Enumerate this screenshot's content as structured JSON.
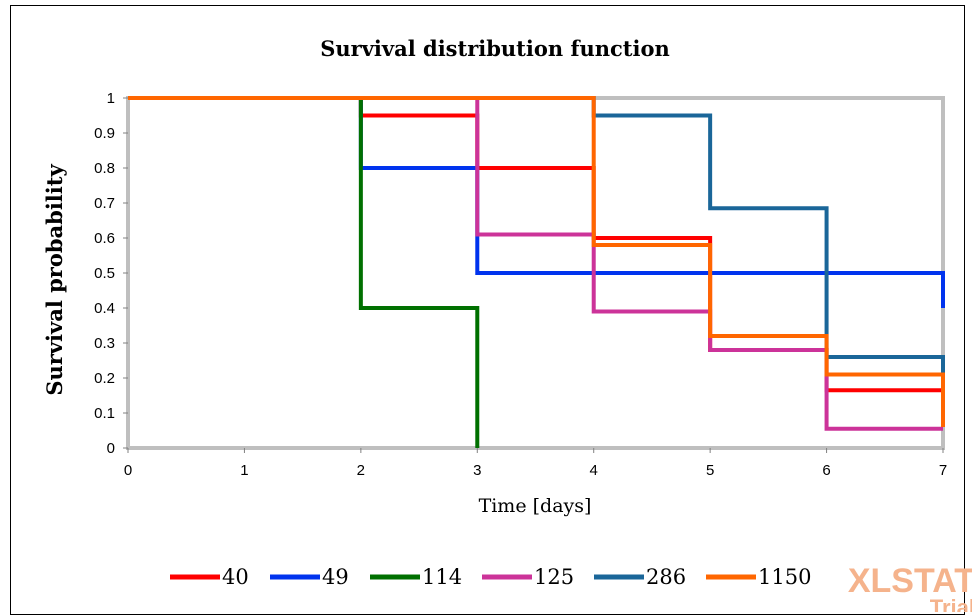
{
  "chart_data": {
    "type": "line",
    "step": true,
    "title": "Survival distribution function",
    "xlabel": "Time [days]",
    "ylabel": "Survival probability",
    "xlim": [
      0,
      7
    ],
    "ylim": [
      0,
      1
    ],
    "xticks": [
      "0",
      "1",
      "2",
      "3",
      "4",
      "5",
      "6",
      "7"
    ],
    "yticks": [
      "0",
      "0.1",
      "0.2",
      "0.3",
      "0.4",
      "0.5",
      "0.6",
      "0.7",
      "0.8",
      "0.9",
      "1"
    ],
    "grid": false,
    "legend_position": "bottom",
    "series": [
      {
        "name": "40",
        "color": "#ff0000",
        "x": [
          0,
          2,
          3,
          4,
          5,
          6,
          7
        ],
        "y": [
          1,
          0.95,
          0.8,
          0.6,
          0.28,
          0.165,
          0.165
        ]
      },
      {
        "name": "49",
        "color": "#0033ee",
        "x": [
          0,
          2,
          3,
          7
        ],
        "y": [
          1,
          0.8,
          0.5,
          0.4
        ]
      },
      {
        "name": "114",
        "color": "#007000",
        "x": [
          0,
          2,
          3
        ],
        "y": [
          1,
          0.4,
          0
        ]
      },
      {
        "name": "125",
        "color": "#cc3399",
        "x": [
          0,
          3,
          4,
          5,
          6,
          7
        ],
        "y": [
          1,
          0.61,
          0.39,
          0.28,
          0.055,
          0.055
        ]
      },
      {
        "name": "286",
        "color": "#1a6699",
        "x": [
          0,
          4,
          5,
          6,
          7
        ],
        "y": [
          1,
          0.95,
          0.685,
          0.26,
          0.2
        ]
      },
      {
        "name": "1150",
        "color": "#ff6600",
        "x": [
          0,
          4,
          5,
          6,
          7
        ],
        "y": [
          1,
          0.58,
          0.32,
          0.21,
          0.06
        ]
      }
    ]
  },
  "watermark": {
    "line1": "XLSTAT",
    "line2": "Trial"
  }
}
